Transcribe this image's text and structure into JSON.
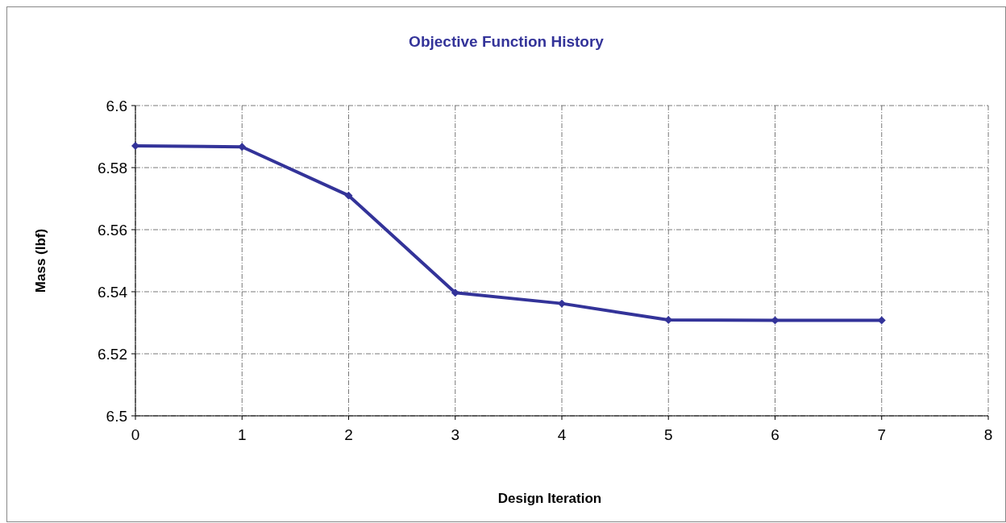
{
  "chart_data": {
    "type": "line",
    "title": "Objective Function History",
    "xlabel": "Design Iteration",
    "ylabel": "Mass (lbf)",
    "x": [
      0,
      1,
      2,
      3,
      4,
      5,
      6,
      7
    ],
    "series": [
      {
        "color": "#333399",
        "values": [
          6.587,
          6.5867,
          6.571,
          6.5397,
          6.5362,
          6.5309,
          6.5308,
          6.5308
        ]
      }
    ],
    "xlim": [
      0,
      8
    ],
    "xticks": [
      0,
      1,
      2,
      3,
      4,
      5,
      6,
      7,
      8
    ],
    "ylim": [
      6.5,
      6.6
    ],
    "yticks": [
      {
        "value": 6.5,
        "label": "6.5"
      },
      6.52,
      6.54,
      6.56,
      6.58,
      {
        "value": 6.6,
        "label": "6.6"
      }
    ],
    "grid": true,
    "marker": "diamond",
    "line_style": "solid"
  }
}
